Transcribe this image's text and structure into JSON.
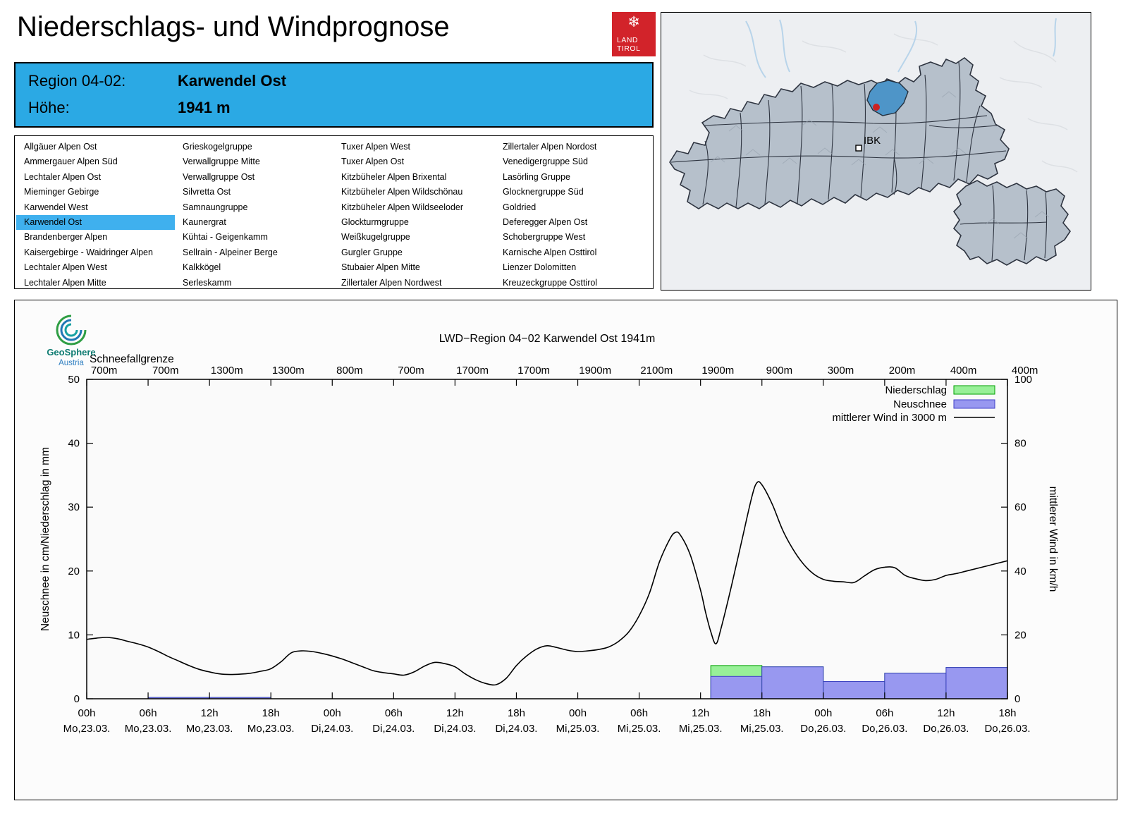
{
  "header": {
    "title": "Niederschlags- und Windprognose",
    "logo": {
      "line1": "LAND",
      "line2": "TIROL"
    }
  },
  "region_box": {
    "region_label": "Region 04-02:",
    "region_value": "Karwendel Ost",
    "altitude_label": "Höhe:",
    "altitude_value": "1941 m"
  },
  "region_list": {
    "selected": "Karwendel Ost",
    "columns": [
      [
        "Allgäuer Alpen Ost",
        "Ammergauer Alpen Süd",
        "Lechtaler Alpen Ost",
        "Mieminger Gebirge",
        "Karwendel West",
        "Karwendel Ost",
        "Brandenberger Alpen",
        "Kaisergebirge - Waidringer Alpen",
        "Lechtaler Alpen West",
        "Lechtaler Alpen Mitte"
      ],
      [
        "Grieskogelgruppe",
        "Verwallgruppe Mitte",
        "Verwallgruppe Ost",
        "Silvretta Ost",
        "Samnaungruppe",
        "Kaunergrat",
        "Kühtai - Geigenkamm",
        "Sellrain - Alpeiner Berge",
        "Kalkkögel",
        "Serleskamm"
      ],
      [
        "Tuxer Alpen West",
        "Tuxer Alpen Ost",
        "Kitzbüheler Alpen Brixental",
        "Kitzbüheler Alpen Wildschönau",
        "Kitzbüheler Alpen Wildseeloder",
        "Glockturmgruppe",
        "Weißkugelgruppe",
        "Gurgler Gruppe",
        "Stubaier Alpen Mitte",
        "Zillertaler Alpen Nordwest"
      ],
      [
        "Zillertaler Alpen Nordost",
        "Venedigergruppe Süd",
        "Lasörling Gruppe",
        "Glocknergruppe Süd",
        "Goldried",
        "Deferegger Alpen Ost",
        "Schobergruppe West",
        "Karnische Alpen Osttirol",
        "Lienzer Dolomitten",
        "Kreuzeckgruppe Osttirol"
      ]
    ]
  },
  "map": {
    "city_label": "IBK"
  },
  "geosphere": {
    "name": "GeoSphere",
    "country": "Austria"
  },
  "chart_data": {
    "type": "mixed",
    "title": "LWD−Region 04−02 Karwendel Ost 1941m",
    "snowline_label": "Schneefallgrenze",
    "snowline": [
      "700m",
      "700m",
      "1300m",
      "1300m",
      "800m",
      "700m",
      "1700m",
      "1700m",
      "1900m",
      "2100m",
      "1900m",
      "900m",
      "300m",
      "200m",
      "400m",
      "400m"
    ],
    "x_ticks": [
      {
        "time": "00h",
        "date": "Mo,23.03."
      },
      {
        "time": "06h",
        "date": "Mo,23.03."
      },
      {
        "time": "12h",
        "date": "Mo,23.03."
      },
      {
        "time": "18h",
        "date": "Mo,23.03."
      },
      {
        "time": "00h",
        "date": "Di,24.03."
      },
      {
        "time": "06h",
        "date": "Di,24.03."
      },
      {
        "time": "12h",
        "date": "Di,24.03."
      },
      {
        "time": "18h",
        "date": "Di,24.03."
      },
      {
        "time": "00h",
        "date": "Mi,25.03."
      },
      {
        "time": "06h",
        "date": "Mi,25.03."
      },
      {
        "time": "12h",
        "date": "Mi,25.03."
      },
      {
        "time": "18h",
        "date": "Mi,25.03."
      },
      {
        "time": "00h",
        "date": "Do,26.03."
      },
      {
        "time": "06h",
        "date": "Do,26.03."
      },
      {
        "time": "12h",
        "date": "Do,26.03."
      },
      {
        "time": "18h",
        "date": "Do,26.03."
      }
    ],
    "ylabel_left": "Neuschnee in cm/Niederschlag in mm",
    "ylabel_right": "mittlerer Wind in km/h",
    "axes": {
      "left_max": 50,
      "right_max": 100,
      "x_hours_max": 90,
      "left_ticks": [
        0,
        10,
        20,
        30,
        40,
        50
      ],
      "right_ticks": [
        0,
        20,
        40,
        60,
        80,
        100
      ]
    },
    "legend": [
      {
        "label": "Niederschlag",
        "swatch": "box",
        "fill": "#98f098",
        "stroke": "#00a000"
      },
      {
        "label": "Neuschnee",
        "swatch": "box",
        "fill": "#9898f0",
        "stroke": "#4040c8"
      },
      {
        "label": "mittlerer Wind in 3000 m",
        "swatch": "line"
      }
    ],
    "colors": {
      "niederschlag_fill": "#98f098",
      "niederschlag_stroke": "#00a000",
      "neuschnee_fill": "#9898f0",
      "neuschnee_stroke": "#4040c8",
      "wind": "#000000",
      "accent": "#2ba9e4",
      "highlight": "#3fb0ee"
    },
    "bars": [
      {
        "start": 6,
        "end": 12,
        "neuschnee_cm": 0.2,
        "niederschlag_mm": 0.2
      },
      {
        "start": 12,
        "end": 18,
        "neuschnee_cm": 0.2,
        "niederschlag_mm": 0.2
      },
      {
        "start": 61,
        "end": 66,
        "neuschnee_cm": 3.5,
        "niederschlag_mm": 5.2
      },
      {
        "start": 66,
        "end": 72,
        "neuschnee_cm": 5.0,
        "niederschlag_mm": 5.0
      },
      {
        "start": 72,
        "end": 78,
        "neuschnee_cm": 2.7,
        "niederschlag_mm": 2.7
      },
      {
        "start": 78,
        "end": 84,
        "neuschnee_cm": 4.0,
        "niederschlag_mm": 4.0
      },
      {
        "start": 84,
        "end": 90,
        "neuschnee_cm": 4.9,
        "niederschlag_mm": 4.9
      }
    ],
    "wind": {
      "unit": "km/h",
      "points": [
        [
          0,
          18.6
        ],
        [
          1,
          19.0
        ],
        [
          2,
          19.2
        ],
        [
          3,
          18.8
        ],
        [
          4,
          18.0
        ],
        [
          5,
          17.2
        ],
        [
          6,
          16.2
        ],
        [
          7,
          14.8
        ],
        [
          8,
          13.2
        ],
        [
          9,
          11.8
        ],
        [
          10,
          10.4
        ],
        [
          11,
          9.2
        ],
        [
          12,
          8.4
        ],
        [
          13,
          7.8
        ],
        [
          14,
          7.6
        ],
        [
          15,
          7.7
        ],
        [
          16,
          8.0
        ],
        [
          17,
          8.6
        ],
        [
          18,
          9.4
        ],
        [
          19,
          11.6
        ],
        [
          20,
          14.4
        ],
        [
          21,
          15.0
        ],
        [
          22,
          14.8
        ],
        [
          23,
          14.2
        ],
        [
          24,
          13.4
        ],
        [
          25,
          12.4
        ],
        [
          26,
          11.2
        ],
        [
          27,
          10.0
        ],
        [
          28,
          8.8
        ],
        [
          29,
          8.2
        ],
        [
          30,
          7.8
        ],
        [
          31,
          7.4
        ],
        [
          32,
          8.4
        ],
        [
          33,
          10.2
        ],
        [
          34,
          11.4
        ],
        [
          35,
          11.0
        ],
        [
          36,
          10.0
        ],
        [
          37,
          7.8
        ],
        [
          38,
          6.0
        ],
        [
          39,
          4.8
        ],
        [
          40,
          4.4
        ],
        [
          41,
          6.4
        ],
        [
          42,
          10.4
        ],
        [
          43,
          13.4
        ],
        [
          44,
          15.6
        ],
        [
          45,
          16.6
        ],
        [
          46,
          16.0
        ],
        [
          47,
          15.2
        ],
        [
          48,
          14.8
        ],
        [
          49,
          15.0
        ],
        [
          50,
          15.4
        ],
        [
          51,
          16.2
        ],
        [
          52,
          18.0
        ],
        [
          53,
          21.0
        ],
        [
          54,
          26.0
        ],
        [
          55,
          33.0
        ],
        [
          56,
          43.0
        ],
        [
          57,
          50.0
        ],
        [
          57.5,
          52.0
        ],
        [
          58,
          51.4
        ],
        [
          59,
          45.0
        ],
        [
          60,
          34.0
        ],
        [
          60.5,
          27.0
        ],
        [
          61,
          21.0
        ],
        [
          61.5,
          17.2
        ],
        [
          62,
          22.0
        ],
        [
          63,
          35.0
        ],
        [
          64,
          49.0
        ],
        [
          65,
          63.0
        ],
        [
          65.5,
          67.6
        ],
        [
          66,
          67.0
        ],
        [
          67,
          61.0
        ],
        [
          68,
          53.0
        ],
        [
          69,
          47.0
        ],
        [
          70,
          42.4
        ],
        [
          71,
          39.2
        ],
        [
          72,
          37.4
        ],
        [
          73,
          36.8
        ],
        [
          74,
          36.6
        ],
        [
          75,
          36.4
        ],
        [
          76,
          38.4
        ],
        [
          77,
          40.4
        ],
        [
          78,
          41.2
        ],
        [
          79,
          41.0
        ],
        [
          80,
          38.6
        ],
        [
          81,
          37.6
        ],
        [
          82,
          37.0
        ],
        [
          83,
          37.4
        ],
        [
          84,
          38.6
        ],
        [
          85,
          39.2
        ],
        [
          86,
          40.0
        ],
        [
          88,
          41.6
        ],
        [
          90,
          43.2
        ]
      ]
    }
  }
}
